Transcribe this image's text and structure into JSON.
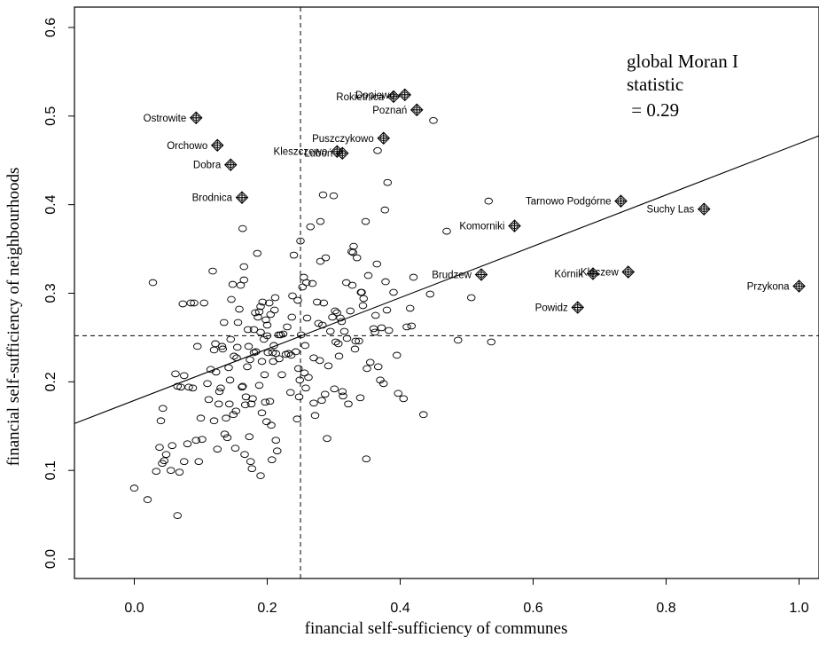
{
  "chart_data": {
    "type": "scatter",
    "title": "",
    "xlabel": "financial self-sufficiency of communes",
    "ylabel": "financial self-sufficiency of neighbourhoods",
    "xlim": [
      -0.09,
      1.03
    ],
    "ylim": [
      -0.022,
      0.623
    ],
    "xticks": [
      0.0,
      0.2,
      0.4,
      0.6,
      0.8,
      1.0
    ],
    "xtick_labels": [
      "0.0",
      "0.2",
      "0.4",
      "0.6",
      "0.8",
      "1.0"
    ],
    "yticks": [
      0.0,
      0.1,
      0.2,
      0.3,
      0.4,
      0.5,
      0.6
    ],
    "ytick_labels": [
      "0.0",
      "0.1",
      "0.2",
      "0.3",
      "0.4",
      "0.5",
      "0.6"
    ],
    "grid": false,
    "annotation": [
      "global Moran I",
      "statistic",
      " = 0.29"
    ],
    "mean_x": 0.25,
    "mean_y": 0.252,
    "regression_line": {
      "intercept": 0.179,
      "slope": 0.29
    },
    "points": [
      [
        0.0,
        0.08
      ],
      [
        0.02,
        0.067
      ],
      [
        0.028,
        0.312
      ],
      [
        0.033,
        0.099
      ],
      [
        0.038,
        0.126
      ],
      [
        0.04,
        0.156
      ],
      [
        0.042,
        0.108
      ],
      [
        0.043,
        0.17
      ],
      [
        0.045,
        0.111
      ],
      [
        0.048,
        0.118
      ],
      [
        0.055,
        0.1
      ],
      [
        0.057,
        0.128
      ],
      [
        0.062,
        0.209
      ],
      [
        0.065,
        0.195
      ],
      [
        0.065,
        0.049
      ],
      [
        0.068,
        0.098
      ],
      [
        0.07,
        0.194
      ],
      [
        0.073,
        0.288
      ],
      [
        0.075,
        0.207
      ],
      [
        0.075,
        0.11
      ],
      [
        0.08,
        0.13
      ],
      [
        0.082,
        0.194
      ],
      [
        0.085,
        0.289
      ],
      [
        0.088,
        0.193
      ],
      [
        0.09,
        0.289
      ],
      [
        0.093,
        0.134
      ],
      [
        0.095,
        0.24
      ],
      [
        0.097,
        0.11
      ],
      [
        0.1,
        0.159
      ],
      [
        0.102,
        0.135
      ],
      [
        0.105,
        0.289
      ],
      [
        0.11,
        0.198
      ],
      [
        0.112,
        0.18
      ],
      [
        0.115,
        0.214
      ],
      [
        0.118,
        0.325
      ],
      [
        0.12,
        0.236
      ],
      [
        0.12,
        0.156
      ],
      [
        0.122,
        0.243
      ],
      [
        0.123,
        0.211
      ],
      [
        0.125,
        0.124
      ],
      [
        0.127,
        0.175
      ],
      [
        0.128,
        0.189
      ],
      [
        0.13,
        0.193
      ],
      [
        0.132,
        0.24
      ],
      [
        0.133,
        0.237
      ],
      [
        0.135,
        0.267
      ],
      [
        0.136,
        0.141
      ],
      [
        0.138,
        0.159
      ],
      [
        0.14,
        0.137
      ],
      [
        0.142,
        0.216
      ],
      [
        0.143,
        0.175
      ],
      [
        0.144,
        0.202
      ],
      [
        0.145,
        0.248
      ],
      [
        0.146,
        0.293
      ],
      [
        0.148,
        0.31
      ],
      [
        0.149,
        0.163
      ],
      [
        0.15,
        0.229
      ],
      [
        0.152,
        0.125
      ],
      [
        0.153,
        0.167
      ],
      [
        0.154,
        0.227
      ],
      [
        0.155,
        0.239
      ],
      [
        0.156,
        0.267
      ],
      [
        0.158,
        0.282
      ],
      [
        0.16,
        0.309
      ],
      [
        0.162,
        0.194
      ],
      [
        0.163,
        0.195
      ],
      [
        0.163,
        0.373
      ],
      [
        0.165,
        0.315
      ],
      [
        0.165,
        0.33
      ],
      [
        0.166,
        0.118
      ],
      [
        0.167,
        0.174
      ],
      [
        0.168,
        0.183
      ],
      [
        0.17,
        0.217
      ],
      [
        0.171,
        0.259
      ],
      [
        0.172,
        0.24
      ],
      [
        0.173,
        0.138
      ],
      [
        0.174,
        0.225
      ],
      [
        0.175,
        0.11
      ],
      [
        0.176,
        0.175
      ],
      [
        0.177,
        0.102
      ],
      [
        0.178,
        0.181
      ],
      [
        0.18,
        0.233
      ],
      [
        0.18,
        0.259
      ],
      [
        0.182,
        0.278
      ],
      [
        0.183,
        0.234
      ],
      [
        0.185,
        0.345
      ],
      [
        0.186,
        0.273
      ],
      [
        0.188,
        0.196
      ],
      [
        0.188,
        0.279
      ],
      [
        0.19,
        0.094
      ],
      [
        0.19,
        0.285
      ],
      [
        0.19,
        0.256
      ],
      [
        0.192,
        0.223
      ],
      [
        0.192,
        0.165
      ],
      [
        0.193,
        0.29
      ],
      [
        0.195,
        0.248
      ],
      [
        0.196,
        0.208
      ],
      [
        0.197,
        0.177
      ],
      [
        0.198,
        0.27
      ],
      [
        0.199,
        0.155
      ],
      [
        0.2,
        0.252
      ],
      [
        0.2,
        0.264
      ],
      [
        0.201,
        0.233
      ],
      [
        0.203,
        0.289
      ],
      [
        0.204,
        0.178
      ],
      [
        0.205,
        0.276
      ],
      [
        0.206,
        0.151
      ],
      [
        0.207,
        0.112
      ],
      [
        0.208,
        0.233
      ],
      [
        0.209,
        0.223
      ],
      [
        0.21,
        0.241
      ],
      [
        0.211,
        0.281
      ],
      [
        0.212,
        0.295
      ],
      [
        0.213,
        0.134
      ],
      [
        0.213,
        0.232
      ],
      [
        0.215,
        0.122
      ],
      [
        0.217,
        0.253
      ],
      [
        0.218,
        0.226
      ],
      [
        0.22,
        0.253
      ],
      [
        0.222,
        0.208
      ],
      [
        0.224,
        0.254
      ],
      [
        0.228,
        0.231
      ],
      [
        0.23,
        0.262
      ],
      [
        0.232,
        0.232
      ],
      [
        0.235,
        0.188
      ],
      [
        0.236,
        0.23
      ],
      [
        0.237,
        0.273
      ],
      [
        0.238,
        0.297
      ],
      [
        0.24,
        0.343
      ],
      [
        0.243,
        0.234
      ],
      [
        0.245,
        0.158
      ],
      [
        0.246,
        0.292
      ],
      [
        0.247,
        0.215
      ],
      [
        0.248,
        0.183
      ],
      [
        0.249,
        0.202
      ],
      [
        0.25,
        0.359
      ],
      [
        0.251,
        0.253
      ],
      [
        0.253,
        0.307
      ],
      [
        0.255,
        0.318
      ],
      [
        0.256,
        0.21
      ],
      [
        0.257,
        0.241
      ],
      [
        0.258,
        0.193
      ],
      [
        0.259,
        0.312
      ],
      [
        0.26,
        0.272
      ],
      [
        0.262,
        0.205
      ],
      [
        0.265,
        0.375
      ],
      [
        0.268,
        0.311
      ],
      [
        0.27,
        0.227
      ],
      [
        0.27,
        0.176
      ],
      [
        0.272,
        0.162
      ],
      [
        0.275,
        0.29
      ],
      [
        0.277,
        0.266
      ],
      [
        0.279,
        0.224
      ],
      [
        0.28,
        0.381
      ],
      [
        0.28,
        0.336
      ],
      [
        0.282,
        0.179
      ],
      [
        0.283,
        0.264
      ],
      [
        0.284,
        0.411
      ],
      [
        0.285,
        0.289
      ],
      [
        0.287,
        0.186
      ],
      [
        0.288,
        0.34
      ],
      [
        0.29,
        0.136
      ],
      [
        0.292,
        0.218
      ],
      [
        0.295,
        0.257
      ],
      [
        0.298,
        0.273
      ],
      [
        0.3,
        0.41
      ],
      [
        0.301,
        0.192
      ],
      [
        0.302,
        0.28
      ],
      [
        0.303,
        0.245
      ],
      [
        0.305,
        0.278
      ],
      [
        0.307,
        0.243
      ],
      [
        0.308,
        0.229
      ],
      [
        0.31,
        0.272
      ],
      [
        0.312,
        0.268
      ],
      [
        0.313,
        0.189
      ],
      [
        0.314,
        0.184
      ],
      [
        0.316,
        0.257
      ],
      [
        0.319,
        0.312
      ],
      [
        0.32,
        0.249
      ],
      [
        0.322,
        0.175
      ],
      [
        0.325,
        0.28
      ],
      [
        0.327,
        0.347
      ],
      [
        0.328,
        0.309
      ],
      [
        0.329,
        0.346
      ],
      [
        0.33,
        0.353
      ],
      [
        0.332,
        0.237
      ],
      [
        0.333,
        0.246
      ],
      [
        0.335,
        0.34
      ],
      [
        0.338,
        0.246
      ],
      [
        0.34,
        0.182
      ],
      [
        0.341,
        0.301
      ],
      [
        0.342,
        0.301
      ],
      [
        0.344,
        0.286
      ],
      [
        0.345,
        0.294
      ],
      [
        0.348,
        0.381
      ],
      [
        0.349,
        0.113
      ],
      [
        0.35,
        0.215
      ],
      [
        0.352,
        0.32
      ],
      [
        0.355,
        0.222
      ],
      [
        0.36,
        0.26
      ],
      [
        0.362,
        0.256
      ],
      [
        0.363,
        0.275
      ],
      [
        0.365,
        0.333
      ],
      [
        0.366,
        0.461
      ],
      [
        0.367,
        0.217
      ],
      [
        0.37,
        0.202
      ],
      [
        0.372,
        0.261
      ],
      [
        0.375,
        0.198
      ],
      [
        0.377,
        0.394
      ],
      [
        0.378,
        0.313
      ],
      [
        0.38,
        0.281
      ],
      [
        0.381,
        0.425
      ],
      [
        0.383,
        0.258
      ],
      [
        0.39,
        0.301
      ],
      [
        0.395,
        0.23
      ],
      [
        0.397,
        0.187
      ],
      [
        0.405,
        0.181
      ],
      [
        0.41,
        0.262
      ],
      [
        0.415,
        0.283
      ],
      [
        0.417,
        0.263
      ],
      [
        0.42,
        0.318
      ],
      [
        0.435,
        0.163
      ],
      [
        0.445,
        0.299
      ],
      [
        0.45,
        0.495
      ],
      [
        0.47,
        0.37
      ],
      [
        0.487,
        0.247
      ],
      [
        0.507,
        0.295
      ],
      [
        0.533,
        0.404
      ],
      [
        0.537,
        0.245
      ]
    ],
    "labelled_points": [
      {
        "name": "Ostrowite",
        "x": 0.093,
        "y": 0.498
      },
      {
        "name": "Orchowo",
        "x": 0.125,
        "y": 0.467
      },
      {
        "name": "Dobra",
        "x": 0.145,
        "y": 0.445
      },
      {
        "name": "Brodnica",
        "x": 0.162,
        "y": 0.408
      },
      {
        "name": "Kleszczewo",
        "x": 0.305,
        "y": 0.46
      },
      {
        "name": "Luboń",
        "x": 0.313,
        "y": 0.458
      },
      {
        "name": "Puszczykowo",
        "x": 0.375,
        "y": 0.475
      },
      {
        "name": "Rokietnica",
        "x": 0.39,
        "y": 0.522
      },
      {
        "name": "Dopiewo",
        "x": 0.407,
        "y": 0.524
      },
      {
        "name": "Poznań",
        "x": 0.425,
        "y": 0.507
      },
      {
        "name": "Komorniki",
        "x": 0.572,
        "y": 0.376
      },
      {
        "name": "Brudzew",
        "x": 0.522,
        "y": 0.321
      },
      {
        "name": "Tarnowo Podgórne",
        "x": 0.732,
        "y": 0.404
      },
      {
        "name": "Suchy Las",
        "x": 0.857,
        "y": 0.395
      },
      {
        "name": "Kleczew",
        "x": 0.743,
        "y": 0.324
      },
      {
        "name": "Kórnik",
        "x": 0.69,
        "y": 0.322
      },
      {
        "name": "Powidz",
        "x": 0.667,
        "y": 0.284
      },
      {
        "name": "Przykona",
        "x": 1.0,
        "y": 0.308
      }
    ]
  }
}
